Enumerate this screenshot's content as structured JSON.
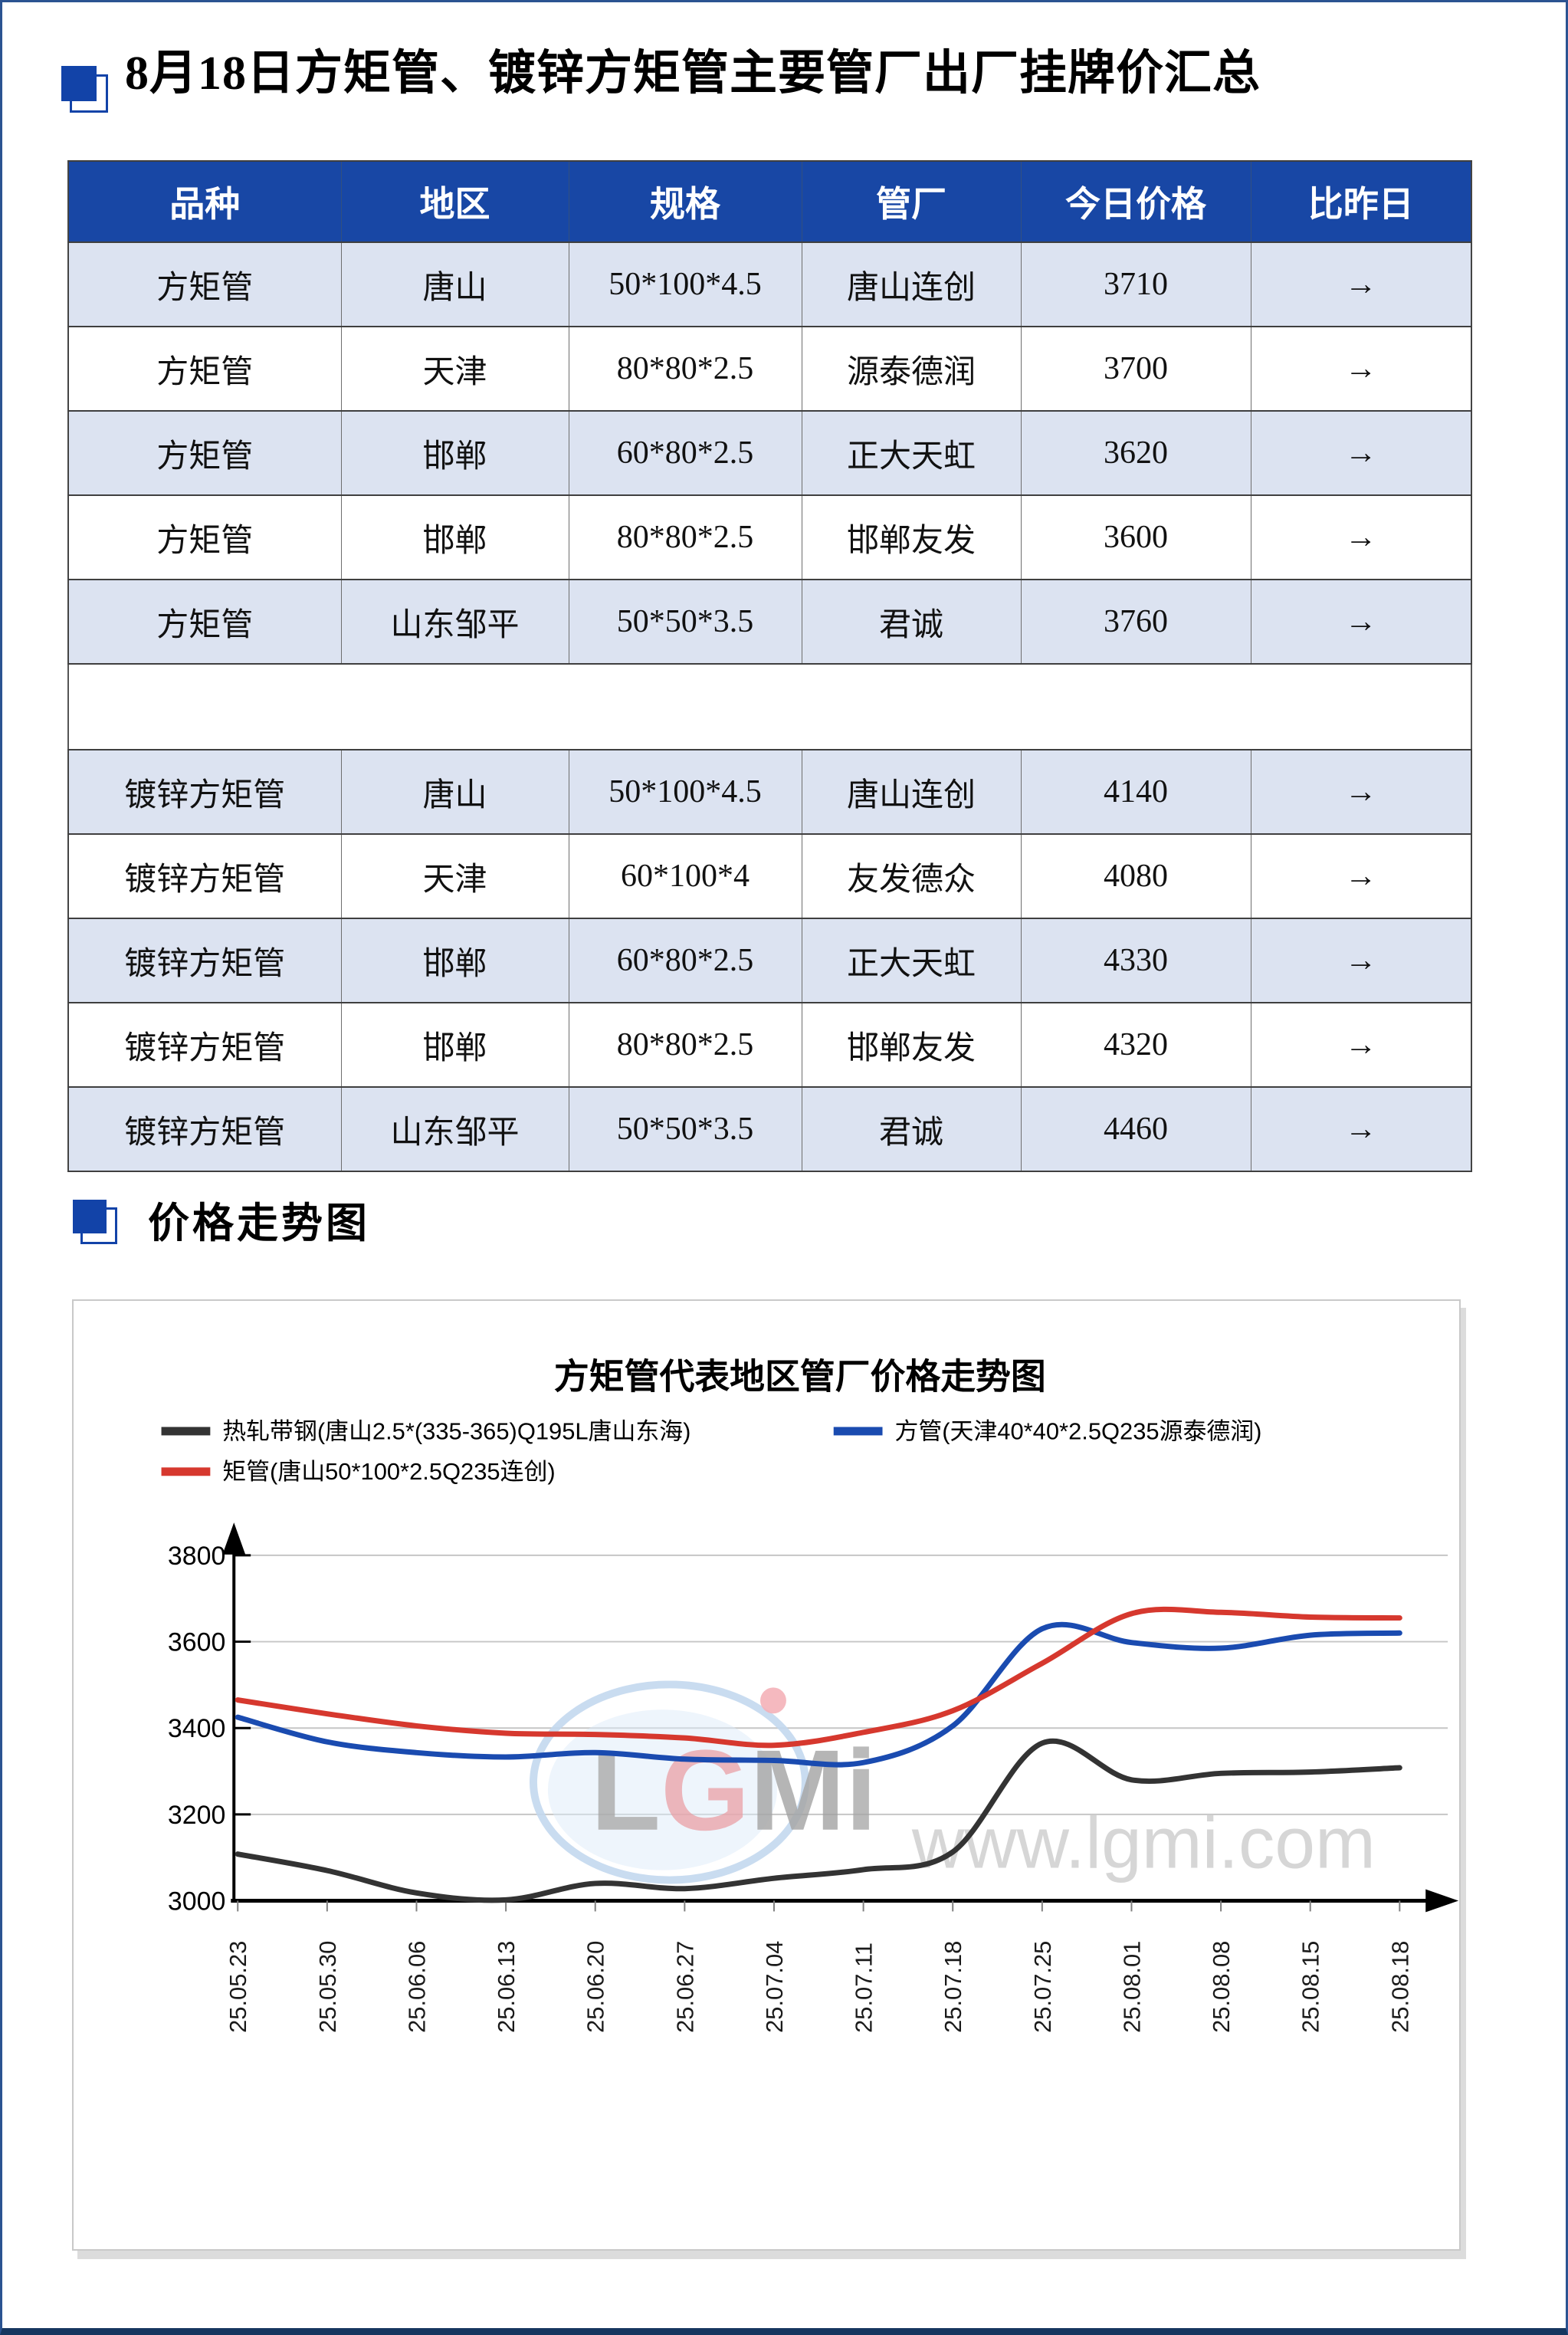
{
  "page": {
    "title": "8月18日方矩管、镀锌方矩管主要管厂出厂挂牌价汇总"
  },
  "section": {
    "title": "价格走势图"
  },
  "table": {
    "headers": [
      "品种",
      "地区",
      "规格",
      "管厂",
      "今日价格",
      "比昨日"
    ],
    "rows": [
      [
        "方矩管",
        "唐山",
        "50*100*4.5",
        "唐山连创",
        "3710",
        "→"
      ],
      [
        "方矩管",
        "天津",
        "80*80*2.5",
        "源泰德润",
        "3700",
        "→"
      ],
      [
        "方矩管",
        "邯郸",
        "60*80*2.5",
        "正大天虹",
        "3620",
        "→"
      ],
      [
        "方矩管",
        "邯郸",
        "80*80*2.5",
        "邯郸友发",
        "3600",
        "→"
      ],
      [
        "方矩管",
        "山东邹平",
        "50*50*3.5",
        "君诚",
        "3760",
        "→"
      ],
      [
        "镀锌方矩管",
        "唐山",
        "50*100*4.5",
        "唐山连创",
        "4140",
        "→"
      ],
      [
        "镀锌方矩管",
        "天津",
        "60*100*4",
        "友发德众",
        "4080",
        "→"
      ],
      [
        "镀锌方矩管",
        "邯郸",
        "60*80*2.5",
        "正大天虹",
        "4330",
        "→"
      ],
      [
        "镀锌方矩管",
        "邯郸",
        "80*80*2.5",
        "邯郸友发",
        "4320",
        "→"
      ],
      [
        "镀锌方矩管",
        "山东邹平",
        "50*50*3.5",
        "君诚",
        "4460",
        "→"
      ]
    ],
    "spacer_after_row": 4
  },
  "chart_data": {
    "type": "line",
    "title": "方矩管代表地区管厂价格走势图",
    "categories": [
      "25.05.23",
      "25.05.30",
      "25.06.06",
      "25.06.13",
      "25.06.20",
      "25.06.27",
      "25.07.04",
      "25.07.11",
      "25.07.18",
      "25.07.25",
      "25.08.01",
      "25.08.08",
      "25.08.15",
      "25.08.18"
    ],
    "series": [
      {
        "name": "热轧带钢(唐山2.5*(335-365)Q195L唐山东海)",
        "color": "#333333",
        "values": [
          3108,
          3070,
          3018,
          3002,
          3040,
          3028,
          3052,
          3072,
          3113,
          3365,
          3280,
          3295,
          3298,
          3308
        ]
      },
      {
        "name": "方管(天津40*40*2.5Q235源泰德润)",
        "color": "#1A4BB0",
        "values": [
          3425,
          3368,
          3343,
          3333,
          3343,
          3328,
          3325,
          3320,
          3405,
          3630,
          3598,
          3585,
          3615,
          3620
        ]
      },
      {
        "name": "矩管(唐山50*100*2.5Q235连创)",
        "color": "#D6382E",
        "values": [
          3465,
          3433,
          3405,
          3388,
          3385,
          3377,
          3360,
          3390,
          3440,
          3550,
          3665,
          3668,
          3657,
          3655
        ]
      }
    ],
    "ylim": [
      3000,
      3870
    ],
    "yticks": [
      3000,
      3200,
      3400,
      3600,
      3800
    ],
    "grid": true,
    "legend_position": "top",
    "watermark": {
      "logo": "LGMi",
      "url_text": "www.lgmi.com"
    }
  },
  "colors": {
    "header_bg": "#1847A5",
    "row_alt_bg": "#DCE3F1",
    "accent_blue": "#1243A8",
    "grid_line": "#C6C6C6"
  }
}
